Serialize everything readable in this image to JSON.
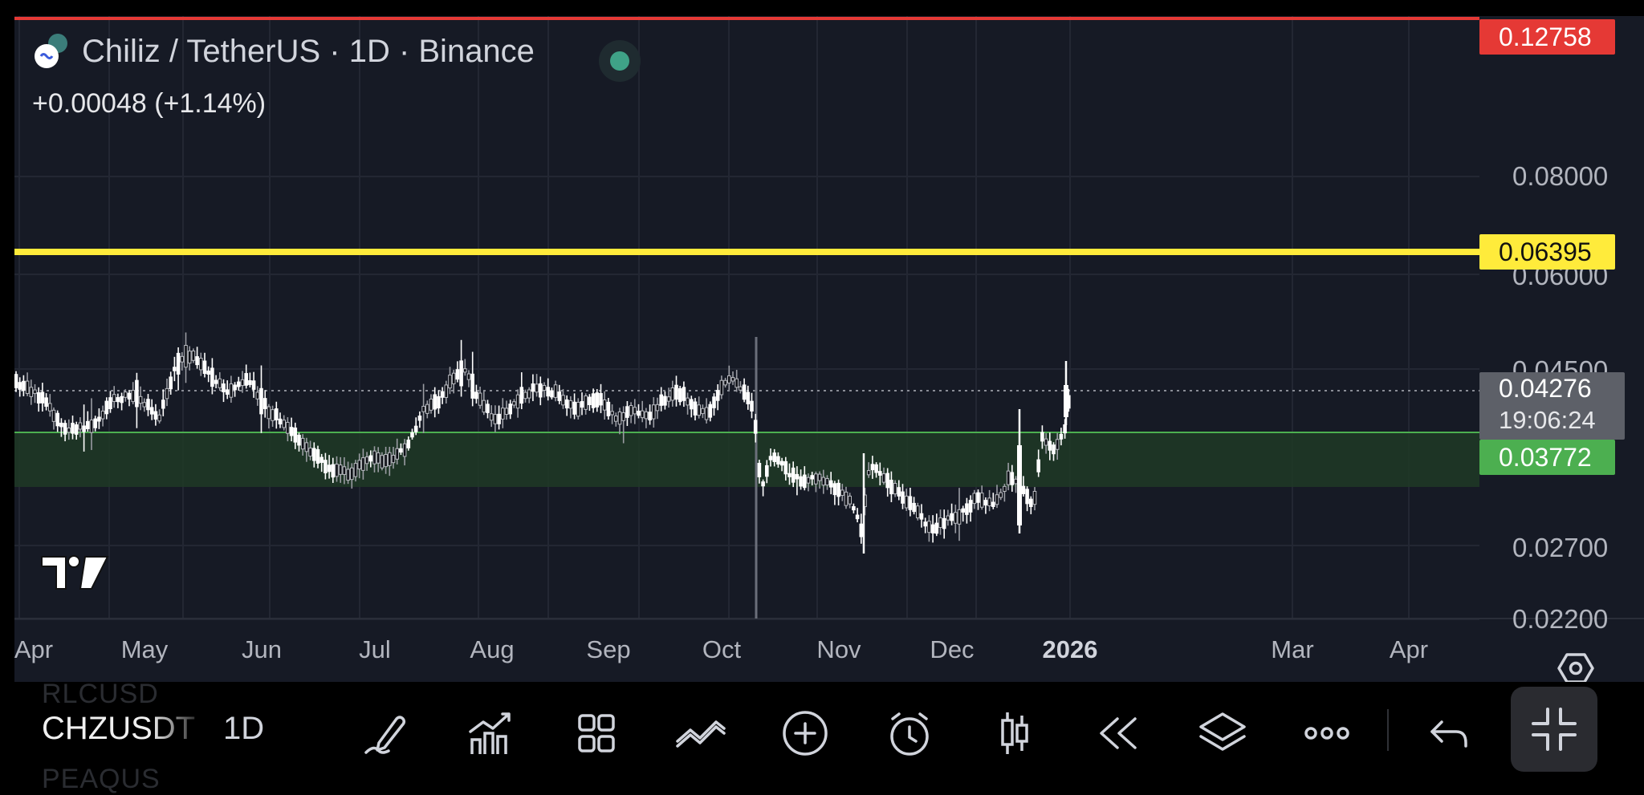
{
  "header": {
    "title": "Chiliz / TetherUS · 1D · Binance",
    "change": "+0.00048 (+1.14%)"
  },
  "price_axis": {
    "labels": [
      "0.08000",
      "0.06000",
      "0.04500",
      "0.02700",
      "0.02200"
    ],
    "badges": {
      "high": {
        "value": "0.12758",
        "color": "#e53935"
      },
      "resistance": {
        "value": "0.06395",
        "color": "#ffeb3b"
      },
      "last": {
        "value": "0.04276",
        "countdown": "19:06:24",
        "color": "#5d6068"
      },
      "support": {
        "value": "0.03772",
        "color": "#4caf50"
      }
    }
  },
  "time_axis": {
    "labels": [
      "Apr",
      "May",
      "Jun",
      "Jul",
      "Aug",
      "Sep",
      "Oct",
      "Nov",
      "Dec",
      "2026",
      "Mar",
      "Apr"
    ],
    "bold_label": "2026"
  },
  "toolbar": {
    "symbol": "CHZUSDT",
    "interval": "1D",
    "ghost_prev": "RLCUSD",
    "ghost_next": "PEAQUS",
    "tools": [
      {
        "name": "draw-icon"
      },
      {
        "name": "indicators-icon"
      },
      {
        "name": "layouts-icon"
      },
      {
        "name": "compare-icon"
      },
      {
        "name": "add-icon"
      },
      {
        "name": "alert-icon"
      },
      {
        "name": "chart-type-icon"
      },
      {
        "name": "replay-icon"
      },
      {
        "name": "layers-icon"
      },
      {
        "name": "more-icon"
      },
      {
        "name": "undo-icon"
      },
      {
        "name": "exit-fullscreen-icon"
      }
    ]
  },
  "colors": {
    "background": "#161a25",
    "candle": "#ffffff",
    "support_zone": "#1e3a26",
    "resistance_line": "#ffeb3b",
    "high_line": "#e53935",
    "live_dot": "#3fa287"
  }
}
